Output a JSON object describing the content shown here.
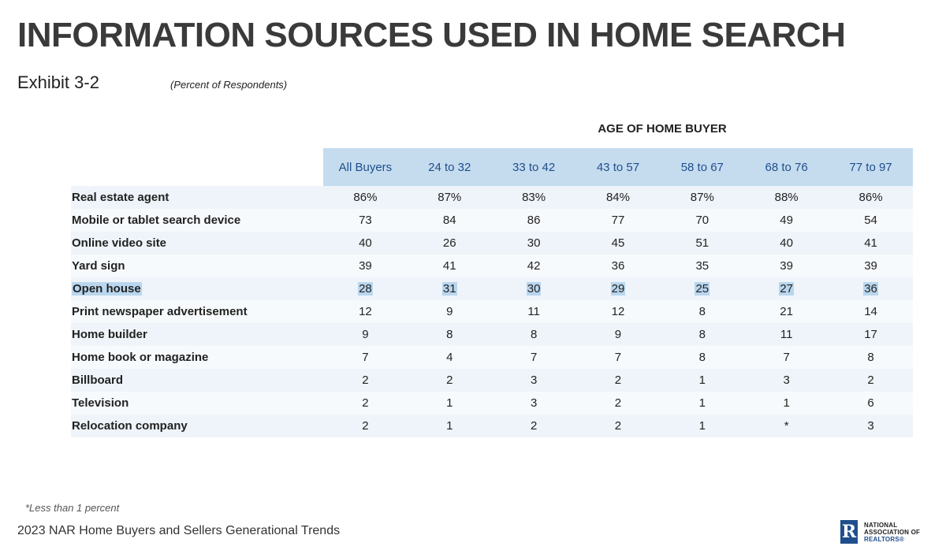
{
  "title": "INFORMATION SOURCES USED IN HOME SEARCH",
  "exhibit": "Exhibit 3-2",
  "subtitle": "(Percent of Respondents)",
  "age_header": "AGE OF HOME BUYER",
  "columns": [
    "All Buyers",
    "24 to 32",
    "33 to 42",
    "43 to 57",
    "58 to 67",
    "68 to 76",
    "77 to 97"
  ],
  "rows": [
    {
      "label": "Real estate agent",
      "values": [
        "86%",
        "87%",
        "83%",
        "84%",
        "87%",
        "88%",
        "86%"
      ]
    },
    {
      "label": "Mobile or tablet search device",
      "values": [
        "73",
        "84",
        "86",
        "77",
        "70",
        "49",
        "54"
      ]
    },
    {
      "label": "Online video site",
      "values": [
        "40",
        "26",
        "30",
        "45",
        "51",
        "40",
        "41"
      ]
    },
    {
      "label": "Yard sign",
      "values": [
        "39",
        "41",
        "42",
        "36",
        "35",
        "39",
        "39"
      ]
    },
    {
      "label": "Open house",
      "values": [
        "28",
        "31",
        "30",
        "29",
        "25",
        "27",
        "36"
      ],
      "highlighted": true
    },
    {
      "label": "Print newspaper advertisement",
      "values": [
        "12",
        "9",
        "11",
        "12",
        "8",
        "21",
        "14"
      ]
    },
    {
      "label": "Home builder",
      "values": [
        "9",
        "8",
        "8",
        "9",
        "8",
        "11",
        "17"
      ]
    },
    {
      "label": "Home book or magazine",
      "values": [
        "7",
        "4",
        "7",
        "7",
        "8",
        "7",
        "8"
      ]
    },
    {
      "label": "Billboard",
      "values": [
        "2",
        "2",
        "3",
        "2",
        "1",
        "3",
        "2"
      ]
    },
    {
      "label": "Television",
      "values": [
        "2",
        "1",
        "3",
        "2",
        "1",
        "1",
        "6"
      ]
    },
    {
      "label": "Relocation company",
      "values": [
        "2",
        "1",
        "2",
        "2",
        "1",
        "*",
        "3"
      ]
    }
  ],
  "footnote": "*Less than 1 percent",
  "source": "2023 NAR Home Buyers and Sellers Generational Trends",
  "logo": {
    "mark": "R",
    "lines": [
      "NATIONAL",
      "ASSOCIATION OF",
      "REALTORS®"
    ]
  },
  "colors": {
    "header_bg": "#c5dcef",
    "header_text": "#1f4e8c",
    "row_band_a": "#eef4f9",
    "row_band_b": "#f7fafc",
    "highlight": "#b9d6ee"
  }
}
